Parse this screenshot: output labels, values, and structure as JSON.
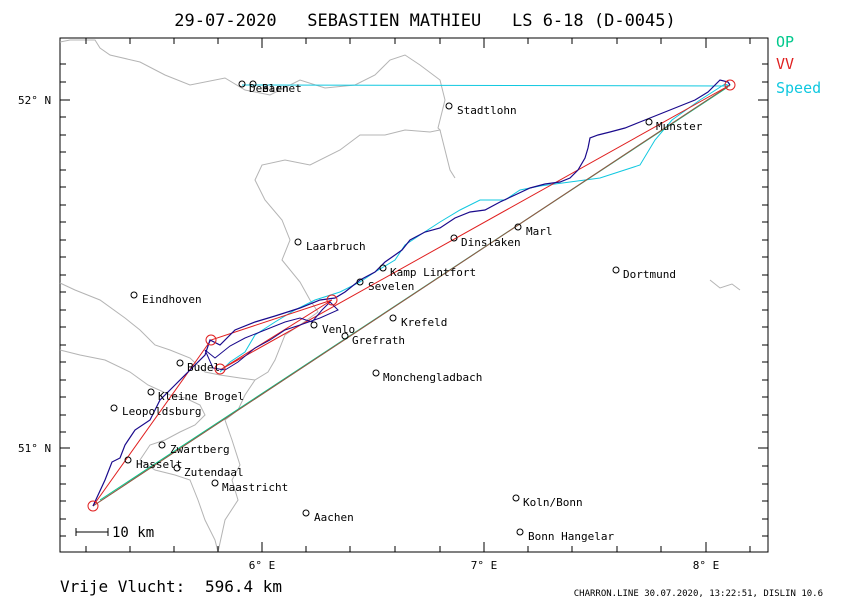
{
  "header": {
    "title": "29-07-2020   SEBASTIEN MATHIEU   LS 6-18 (D-0045)"
  },
  "legend": [
    {
      "label": "OP",
      "color": "#00c88c"
    },
    {
      "label": "VV",
      "color": "#e02020"
    },
    {
      "label": "Speed",
      "color": "#10c8e0"
    }
  ],
  "axes": {
    "lat_labels": [
      "52° N",
      "51° N"
    ],
    "lon_labels": [
      "6° E",
      "7° E",
      "8° E"
    ]
  },
  "cities": [
    {
      "name": "Deelen",
      "name2": "Barnet"
    },
    {
      "name": "Stadtlohn"
    },
    {
      "name": "Munster"
    },
    {
      "name": "Laarbruch"
    },
    {
      "name": "Dinslaken"
    },
    {
      "name": "Marl"
    },
    {
      "name": "Kamp Lintfort"
    },
    {
      "name": "Dortmund"
    },
    {
      "name": "Sevelen"
    },
    {
      "name": "Eindhoven"
    },
    {
      "name": "Venlo"
    },
    {
      "name": "Krefeld"
    },
    {
      "name": "Grefrath"
    },
    {
      "name": "Budel"
    },
    {
      "name": "Monchengladbach"
    },
    {
      "name": "Kleine Brogel"
    },
    {
      "name": "Leopoldsburg"
    },
    {
      "name": "Zwartberg"
    },
    {
      "name": "Hasselt"
    },
    {
      "name": "Zutendaal"
    },
    {
      "name": "Maastricht"
    },
    {
      "name": "Koln/Bonn"
    },
    {
      "name": "Aachen"
    },
    {
      "name": "Bonn Hangelar"
    }
  ],
  "scale_bar": {
    "label": "10 km"
  },
  "footer": {
    "distance_label": "Vrije Vlucht:",
    "distance_value": "596.4 km",
    "program_info": "CHARRON.LINE 30.07.2020, 13:22:51, DISLIN 10.6"
  },
  "colors": {
    "track": "#1a0a8c",
    "optimized": "#00c88c",
    "free_flight": "#e02020",
    "speed": "#10c8e0",
    "borders": "#b4b4b4"
  }
}
